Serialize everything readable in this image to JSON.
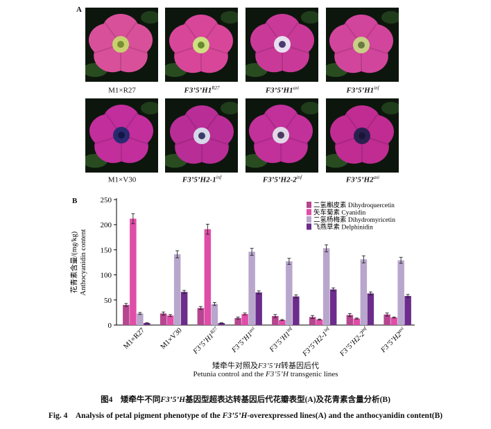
{
  "panels": {
    "a": "A",
    "b": "B"
  },
  "photos": [
    {
      "id": "m1r27",
      "label_pre": "M1×R27",
      "label_it": "",
      "label_sup": "",
      "petal": "#d9509a",
      "throat": "#c8d070",
      "center": "#7a8f30"
    },
    {
      "id": "h1r27",
      "label_pre": "",
      "label_it": "F3’5’H1",
      "label_sup": "R27",
      "petal": "#d8469a",
      "throat": "#cfe080",
      "center": "#6a8a30"
    },
    {
      "id": "h1axi",
      "label_pre": "",
      "label_it": "F3’5’H1",
      "label_sup": "axi",
      "petal": "#c93a98",
      "throat": "#e8e0f0",
      "center": "#4a3a70"
    },
    {
      "id": "h1inf",
      "label_pre": "",
      "label_it": "F3’5’H1",
      "label_sup": "inf",
      "petal": "#d2459c",
      "throat": "#c9cf85",
      "center": "#6a7a40"
    },
    {
      "id": "m1v30",
      "label_pre": "M1×V30",
      "label_it": "",
      "label_sup": "",
      "petal": "#c22e9c",
      "throat": "#2a2a70",
      "center": "#151545"
    },
    {
      "id": "h21inf",
      "label_pre": "",
      "label_it": "F3’5’H2-1",
      "label_sup": "inf",
      "petal": "#b92d96",
      "throat": "#d6d8e8",
      "center": "#3a3a6a"
    },
    {
      "id": "h22inf",
      "label_pre": "",
      "label_it": "F3’5’H2-2",
      "label_sup": "inf",
      "petal": "#c2309a",
      "throat": "#e0d8e6",
      "center": "#4a3a60"
    },
    {
      "id": "h2axi",
      "label_pre": "",
      "label_it": "F3’5’H2",
      "label_sup": "axi",
      "petal": "#c02c92",
      "throat": "#2a2050",
      "center": "#1a1535"
    }
  ],
  "chart_data": {
    "type": "bar",
    "ylabel_cn": "花青素含量/(mg/kg)",
    "ylabel_en": "Anthocyanidin content",
    "ylim": [
      0,
      250
    ],
    "yticks": [
      0,
      50,
      100,
      150,
      200,
      250
    ],
    "categories": [
      {
        "pre": "M1×R27",
        "it": "",
        "sup": ""
      },
      {
        "pre": "M1×V30",
        "it": "",
        "sup": ""
      },
      {
        "pre": "",
        "it": "F3’5’H1",
        "sup": "R27"
      },
      {
        "pre": "",
        "it": "F3’5’H1",
        "sup": "axi"
      },
      {
        "pre": "",
        "it": "F3’5’H1",
        "sup": "inf"
      },
      {
        "pre": "",
        "it": "F3’5’H2-1",
        "sup": "inf"
      },
      {
        "pre": "",
        "it": "F3’5’H2-2",
        "sup": "inf"
      },
      {
        "pre": "",
        "it": "F3’5’H2",
        "sup": "axi"
      }
    ],
    "series": [
      {
        "name": "二氢槲皮素 Dihydroquercetin",
        "color": "#b5468f",
        "values": [
          40,
          23,
          34,
          14,
          18,
          16,
          20,
          21
        ],
        "errors": [
          3,
          3,
          3,
          2,
          3,
          3,
          3,
          3
        ]
      },
      {
        "name": "矢车菊素 Cyanidin",
        "color": "#e04da8",
        "values": [
          212,
          19,
          191,
          22,
          10,
          11,
          13,
          15
        ],
        "errors": [
          10,
          2,
          10,
          2,
          1,
          1,
          1,
          1
        ]
      },
      {
        "name": "二氢杨梅素 Dihydromyricetin",
        "color": "#b8a6cc",
        "values": [
          23,
          141,
          42,
          146,
          127,
          153,
          131,
          129
        ],
        "errors": [
          2,
          7,
          3,
          7,
          6,
          7,
          7,
          6
        ]
      },
      {
        "name": "飞燕草素 Delphinidin",
        "color": "#6c2c8c",
        "values": [
          4,
          66,
          4,
          65,
          57,
          71,
          63,
          58
        ],
        "errors": [
          0.5,
          3,
          0.5,
          3,
          3,
          3,
          3,
          3
        ]
      }
    ],
    "xlabel_cn_pre": "矮牵牛对照及",
    "xlabel_cn_it": "F3’5’H",
    "xlabel_cn_post": "转基因后代",
    "xlabel_en_pre": "Petunia control and the",
    "xlabel_en_it": "F3’5’H",
    "xlabel_en_post": "transgenic lines"
  },
  "caption_cn": {
    "pre": "图4　矮牵牛不同",
    "it": "F3’5’H",
    "post": "基因型超表达转基因后代花瓣表型(A)及花青素含量分析(B)"
  },
  "caption_en": {
    "pre": "Fig. 4　Analysis of petal pigment phenotype of the",
    "it": "F3’5’H",
    "post": "-overexpressed lines(A) and the anthocyanidin content(B)"
  }
}
